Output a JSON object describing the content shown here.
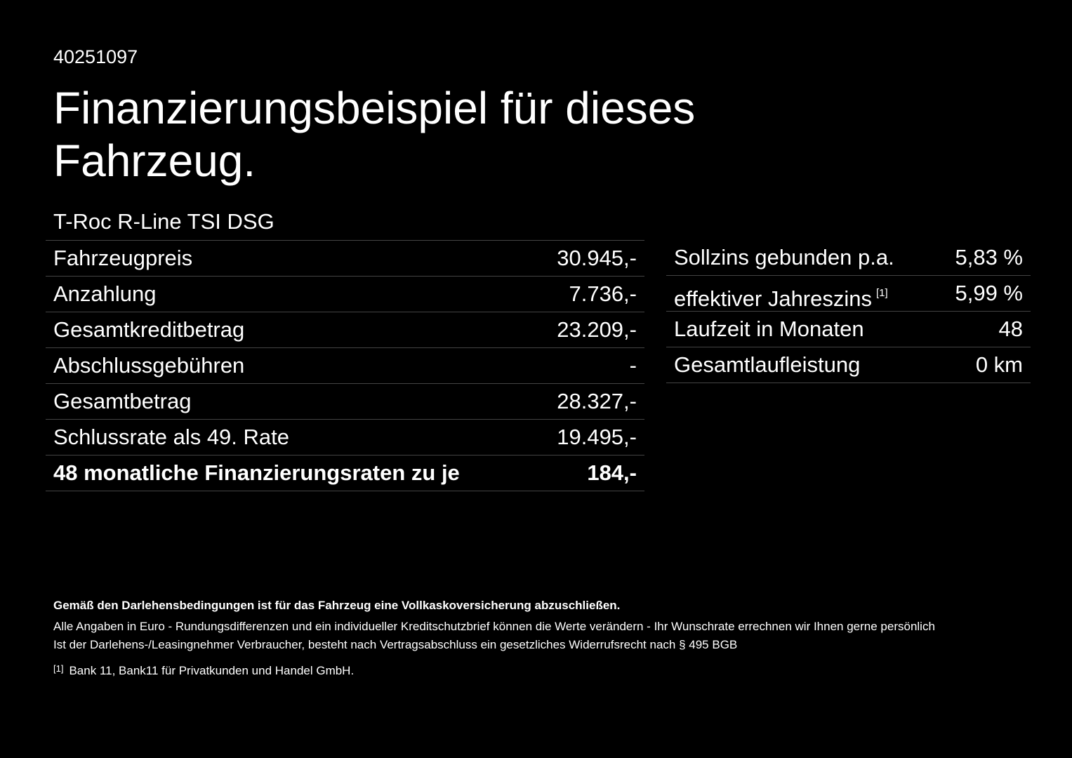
{
  "header": {
    "id": "40251097",
    "title": "Finanzierungsbeispiel für dieses Fahrzeug.",
    "model": "T-Roc R-Line TSI DSG"
  },
  "left_table": {
    "rows": [
      [
        "Fahrzeugpreis",
        "30.945,-"
      ],
      [
        "Anzahlung",
        "7.736,-"
      ],
      [
        "Gesamtkreditbetrag",
        "23.209,-"
      ],
      [
        "Abschlussgebühren",
        "-"
      ],
      [
        "Gesamtbetrag",
        "28.327,-"
      ],
      [
        "Schlussrate als 49. Rate",
        "19.495,-"
      ],
      [
        "48 monatliche Finanzierungsraten zu je",
        "184,-"
      ]
    ]
  },
  "right_table": {
    "rows": [
      [
        "Sollzins gebunden p.a.",
        "5,83 %"
      ],
      [
        "effektiver Jahreszins",
        "5,99 %"
      ],
      [
        "Laufzeit in Monaten",
        "48"
      ],
      [
        "Gesamtlaufleistung",
        "0 km"
      ]
    ],
    "footnote_marker": "[1]"
  },
  "footer": {
    "notice": "Gemäß den Darlehensbedingungen ist für das Fahrzeug eine Vollkaskoversicherung abzuschließen.",
    "lines": [
      "Alle Angaben in Euro - Rundungsdifferenzen und ein individueller Kreditschutzbrief können die Werte verändern - Ihr Wunschrate errechnen wir Ihnen gerne persönlich",
      "Ist der Darlehens-/Leasingnehmer Verbraucher, besteht nach Vertragsabschluss ein gesetzliches Widerrufsrecht nach § 495 BGB"
    ],
    "footnote_marker": "[1]",
    "footnote": "Bank 11, Bank11 für Privatkunden und Handel GmbH."
  }
}
